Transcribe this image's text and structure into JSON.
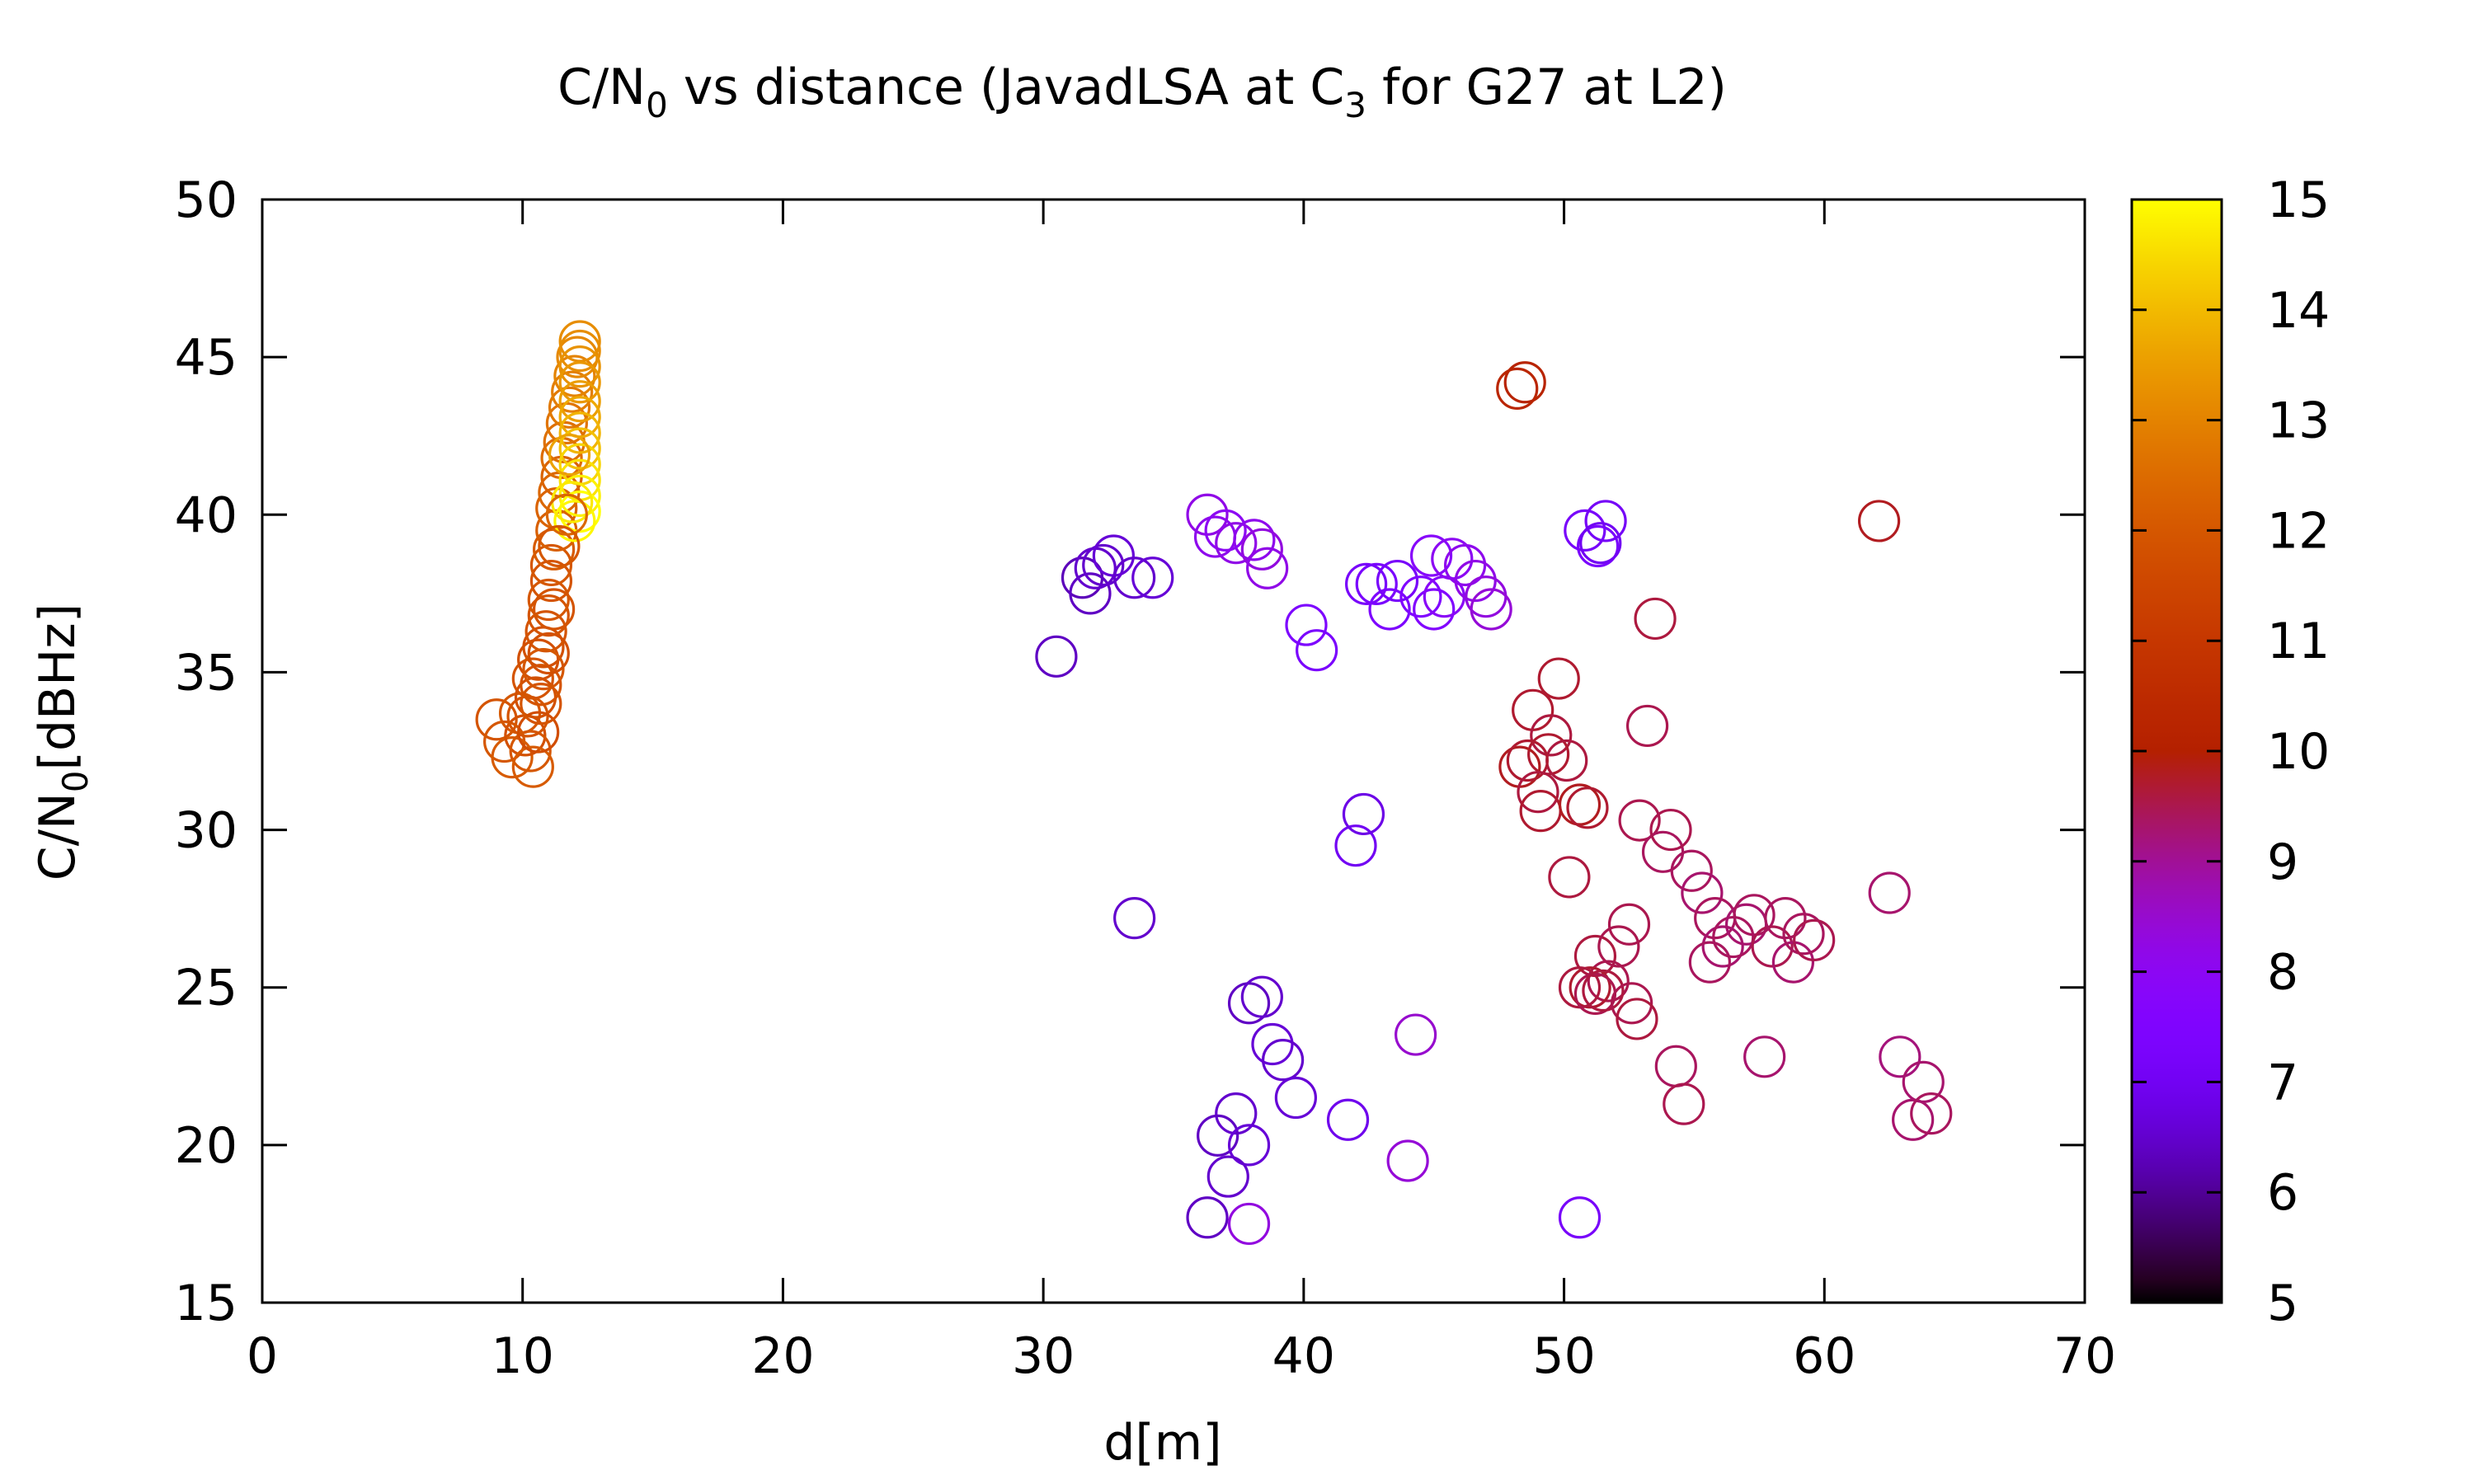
{
  "chart_data": {
    "type": "scatter",
    "title_parts": {
      "a": "C/N",
      "a_sub": "0",
      "b": " vs distance (JavadLSA at C",
      "b_sub": "3",
      "c": " for G27 at L2)"
    },
    "xlabel": "d[m]",
    "ylabel_parts": {
      "main": "C/N",
      "sub": "0",
      "rest": "[dBHz]"
    },
    "xlim": [
      0,
      70
    ],
    "ylim": [
      15,
      50
    ],
    "xticks": [
      0,
      10,
      20,
      30,
      40,
      50,
      60,
      70
    ],
    "yticks": [
      15,
      20,
      25,
      30,
      35,
      40,
      45,
      50
    ],
    "colorbar": {
      "range": [
        5,
        15
      ],
      "ticks": [
        5,
        6,
        7,
        8,
        9,
        10,
        11,
        12,
        13,
        14,
        15
      ],
      "palette": "gnuplot-default"
    },
    "marker": "open-circle",
    "grid": false,
    "points": [
      [
        9.0,
        33.5,
        11.9
      ],
      [
        9.3,
        32.8,
        12.0
      ],
      [
        9.6,
        32.3,
        12.1
      ],
      [
        9.9,
        33.7,
        12.0
      ],
      [
        10.1,
        33.0,
        11.8
      ],
      [
        10.3,
        32.5,
        12.0
      ],
      [
        10.4,
        32.0,
        12.1
      ],
      [
        10.2,
        33.6,
        11.9
      ],
      [
        10.5,
        34.2,
        11.8
      ],
      [
        10.6,
        33.1,
        11.7
      ],
      [
        10.4,
        34.8,
        11.9
      ],
      [
        10.6,
        35.4,
        11.8
      ],
      [
        10.7,
        34.6,
        11.9
      ],
      [
        10.8,
        35.8,
        11.8
      ],
      [
        10.9,
        36.3,
        11.9
      ],
      [
        10.8,
        35.1,
        12.0
      ],
      [
        11.0,
        36.8,
        11.9
      ],
      [
        11.0,
        37.3,
        12.0
      ],
      [
        11.1,
        37.9,
        11.9
      ],
      [
        11.1,
        38.4,
        12.0
      ],
      [
        11.2,
        38.9,
        12.1
      ],
      [
        11.3,
        39.5,
        12.2
      ],
      [
        11.3,
        40.2,
        12.3
      ],
      [
        11.4,
        40.7,
        12.4
      ],
      [
        11.5,
        41.2,
        12.3
      ],
      [
        11.5,
        41.8,
        12.5
      ],
      [
        11.6,
        42.3,
        12.6
      ],
      [
        11.7,
        42.9,
        12.7
      ],
      [
        11.8,
        43.4,
        12.8
      ],
      [
        11.9,
        43.9,
        12.9
      ],
      [
        12.0,
        44.4,
        13.0
      ],
      [
        12.1,
        45.0,
        13.1
      ],
      [
        12.2,
        45.5,
        13.2
      ],
      [
        12.2,
        45.2,
        13.2
      ],
      [
        12.2,
        44.7,
        13.3
      ],
      [
        12.2,
        44.2,
        13.4
      ],
      [
        12.2,
        43.6,
        13.5
      ],
      [
        12.2,
        43.1,
        13.7
      ],
      [
        12.2,
        42.6,
        13.9
      ],
      [
        12.2,
        42.1,
        14.1
      ],
      [
        12.2,
        41.6,
        14.4
      ],
      [
        12.2,
        41.1,
        14.6
      ],
      [
        12.2,
        40.6,
        14.8
      ],
      [
        12.2,
        40.1,
        15.0
      ],
      [
        12.0,
        39.8,
        14.9
      ],
      [
        11.9,
        40.4,
        14.7
      ],
      [
        11.8,
        41.9,
        13.6
      ],
      [
        11.7,
        40.0,
        12.4
      ],
      [
        11.4,
        39.0,
        12.0
      ],
      [
        11.2,
        37.0,
        11.9
      ],
      [
        11.0,
        35.6,
        11.8
      ],
      [
        10.7,
        34.0,
        11.9
      ],
      [
        30.5,
        35.5,
        6.4
      ],
      [
        31.5,
        38.0,
        6.3
      ],
      [
        31.8,
        37.5,
        6.4
      ],
      [
        32.0,
        38.3,
        6.5
      ],
      [
        32.3,
        38.4,
        6.5
      ],
      [
        32.7,
        38.7,
        6.6
      ],
      [
        33.5,
        38.0,
        6.5
      ],
      [
        34.2,
        38.0,
        6.6
      ],
      [
        33.5,
        27.2,
        6.5
      ],
      [
        36.3,
        40.0,
        8.2
      ],
      [
        36.6,
        39.3,
        8.1
      ],
      [
        37.0,
        39.5,
        8.0
      ],
      [
        37.4,
        39.1,
        8.2
      ],
      [
        38.1,
        39.2,
        8.1
      ],
      [
        38.4,
        38.9,
        8.3
      ],
      [
        38.6,
        38.3,
        8.2
      ],
      [
        40.1,
        36.5,
        7.4
      ],
      [
        40.5,
        35.7,
        7.3
      ],
      [
        42.4,
        37.8,
        7.2
      ],
      [
        42.8,
        37.8,
        7.3
      ],
      [
        43.3,
        37.0,
        7.4
      ],
      [
        43.6,
        37.9,
        7.2
      ],
      [
        44.5,
        37.4,
        7.5
      ],
      [
        44.9,
        38.7,
        7.8
      ],
      [
        45.0,
        37.0,
        7.6
      ],
      [
        45.4,
        37.4,
        7.9
      ],
      [
        45.7,
        38.6,
        8.0
      ],
      [
        46.2,
        38.4,
        8.1
      ],
      [
        46.6,
        37.9,
        8.2
      ],
      [
        47.0,
        37.4,
        8.3
      ],
      [
        47.2,
        37.0,
        8.4
      ],
      [
        42.0,
        29.5,
        7.0
      ],
      [
        42.3,
        30.5,
        6.8
      ],
      [
        50.8,
        39.5,
        7.2
      ],
      [
        51.3,
        39.0,
        7.3
      ],
      [
        51.6,
        39.8,
        7.1
      ],
      [
        51.4,
        39.1,
        7.0
      ],
      [
        50.6,
        17.7,
        7.2
      ],
      [
        37.9,
        24.5,
        6.4
      ],
      [
        38.4,
        24.7,
        6.5
      ],
      [
        38.8,
        23.2,
        6.6
      ],
      [
        39.2,
        22.7,
        6.5
      ],
      [
        39.7,
        21.5,
        6.6
      ],
      [
        37.4,
        21.0,
        6.5
      ],
      [
        36.7,
        20.3,
        6.4
      ],
      [
        37.9,
        20.0,
        6.6
      ],
      [
        37.1,
        19.0,
        6.5
      ],
      [
        36.3,
        17.7,
        6.4
      ],
      [
        41.7,
        20.8,
        6.9
      ],
      [
        37.9,
        17.5,
        8.3
      ],
      [
        44.0,
        19.5,
        8.4
      ],
      [
        44.3,
        23.5,
        8.5
      ],
      [
        48.2,
        44.0,
        10.3
      ],
      [
        48.5,
        44.2,
        10.2
      ],
      [
        62.1,
        39.8,
        9.8
      ],
      [
        53.5,
        36.7,
        9.6
      ],
      [
        49.8,
        34.8,
        9.7
      ],
      [
        48.8,
        33.8,
        9.7
      ],
      [
        49.5,
        33.0,
        9.6
      ],
      [
        49.4,
        32.4,
        9.7
      ],
      [
        50.1,
        32.2,
        9.6
      ],
      [
        48.3,
        32.0,
        9.8
      ],
      [
        48.6,
        32.2,
        9.7
      ],
      [
        49.0,
        31.2,
        9.6
      ],
      [
        49.1,
        30.6,
        9.7
      ],
      [
        50.6,
        30.8,
        9.8
      ],
      [
        50.9,
        30.7,
        9.7
      ],
      [
        50.2,
        28.5,
        9.6
      ],
      [
        53.2,
        33.3,
        9.5
      ],
      [
        52.9,
        30.3,
        9.5
      ],
      [
        53.8,
        29.3,
        9.4
      ],
      [
        54.1,
        30.0,
        9.5
      ],
      [
        54.9,
        28.7,
        9.4
      ],
      [
        55.3,
        28.0,
        9.3
      ],
      [
        55.8,
        27.2,
        9.4
      ],
      [
        56.1,
        26.3,
        9.3
      ],
      [
        56.5,
        26.6,
        9.4
      ],
      [
        57.0,
        27.0,
        9.3
      ],
      [
        57.3,
        27.3,
        9.4
      ],
      [
        58.0,
        26.3,
        9.5
      ],
      [
        58.5,
        27.2,
        9.4
      ],
      [
        58.8,
        25.8,
        9.3
      ],
      [
        59.2,
        26.7,
        9.4
      ],
      [
        59.6,
        26.5,
        9.5
      ],
      [
        55.6,
        25.8,
        9.4
      ],
      [
        52.5,
        27.0,
        9.5
      ],
      [
        51.2,
        26.0,
        9.6
      ],
      [
        51.7,
        25.2,
        9.5
      ],
      [
        52.1,
        26.3,
        9.5
      ],
      [
        51.0,
        25.0,
        9.7
      ],
      [
        50.6,
        25.0,
        9.6
      ],
      [
        51.2,
        24.8,
        9.5
      ],
      [
        51.5,
        24.9,
        9.6
      ],
      [
        52.6,
        24.5,
        9.5
      ],
      [
        52.8,
        24.0,
        9.6
      ],
      [
        54.3,
        22.5,
        9.4
      ],
      [
        54.6,
        21.3,
        9.5
      ],
      [
        57.7,
        22.8,
        9.3
      ],
      [
        62.5,
        28.0,
        9.3
      ],
      [
        62.9,
        22.8,
        9.2
      ],
      [
        63.8,
        22.0,
        9.3
      ],
      [
        63.4,
        20.8,
        9.3
      ],
      [
        64.1,
        21.0,
        9.4
      ]
    ]
  }
}
